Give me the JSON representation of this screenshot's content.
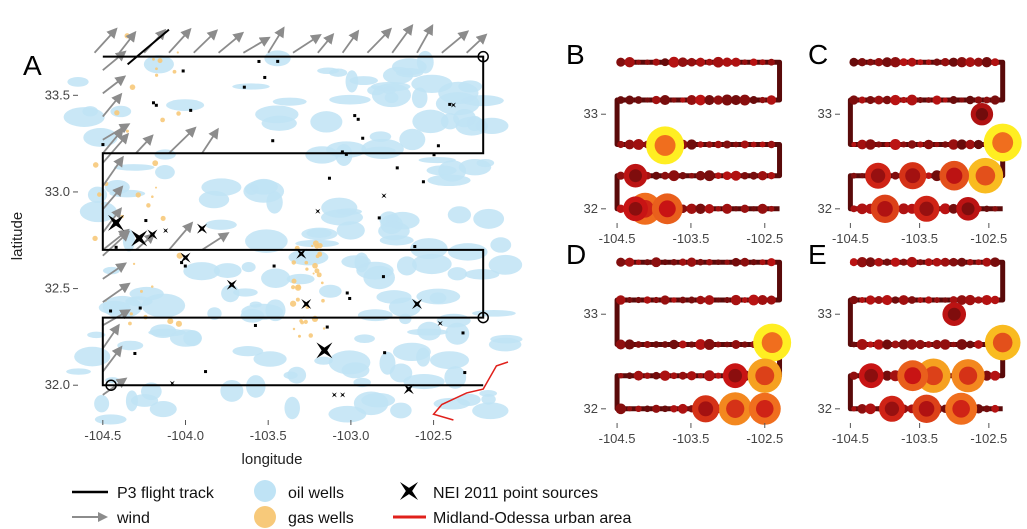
{
  "chart_data": [
    {
      "panel": "A",
      "type": "scatter",
      "xlabel": "longitude",
      "ylabel": "latitude",
      "xlim": [
        -104.65,
        -102.05
      ],
      "ylim": [
        31.82,
        33.9
      ],
      "x_ticks": [
        -104.5,
        -104.0,
        -103.5,
        -103.0,
        -102.5
      ],
      "x_tick_labels": [
        "-104.5",
        "-104.0",
        "-103.5",
        "-103.0",
        "-102.5"
      ],
      "y_ticks": [
        32.0,
        32.5,
        33.0,
        33.5
      ],
      "y_tick_labels": [
        "32.0",
        "32.5",
        "33.0",
        "33.5"
      ],
      "track_latitudes": [
        33.7,
        33.2,
        32.7,
        32.35,
        32.0
      ],
      "track_lon_range": [
        -104.5,
        -102.2
      ],
      "nei_point_sources": [
        {
          "lon": -104.42,
          "lat": 32.84,
          "size": "large"
        },
        {
          "lon": -104.28,
          "lat": 32.76,
          "size": "large"
        },
        {
          "lon": -104.2,
          "lat": 32.78,
          "size": "medium"
        },
        {
          "lon": -103.9,
          "lat": 32.81,
          "size": "medium"
        },
        {
          "lon": -104.12,
          "lat": 32.8,
          "size": "small"
        },
        {
          "lon": -104.0,
          "lat": 32.66,
          "size": "medium"
        },
        {
          "lon": -103.72,
          "lat": 32.52,
          "size": "medium"
        },
        {
          "lon": -103.3,
          "lat": 32.68,
          "size": "medium"
        },
        {
          "lon": -103.27,
          "lat": 32.42,
          "size": "medium"
        },
        {
          "lon": -103.16,
          "lat": 32.18,
          "size": "large"
        },
        {
          "lon": -103.1,
          "lat": 31.95,
          "size": "small"
        },
        {
          "lon": -103.05,
          "lat": 31.95,
          "size": "small"
        },
        {
          "lon": -102.6,
          "lat": 32.42,
          "size": "medium"
        },
        {
          "lon": -102.65,
          "lat": 31.98,
          "size": "medium"
        },
        {
          "lon": -102.46,
          "lat": 32.32,
          "size": "small"
        },
        {
          "lon": -102.38,
          "lat": 33.45,
          "size": "small"
        },
        {
          "lon": -102.8,
          "lat": 32.98,
          "size": "small"
        },
        {
          "lon": -103.2,
          "lat": 32.9,
          "size": "small"
        },
        {
          "lon": -104.08,
          "lat": 32.01,
          "size": "small"
        }
      ]
    },
    {
      "panel": "B",
      "type": "scatter",
      "xlim": [
        -104.65,
        -102.05
      ],
      "ylim": [
        31.85,
        33.7
      ],
      "x_ticks": [
        -104.5,
        -103.5,
        -102.5
      ],
      "x_tick_labels": [
        "-104.5",
        "-103.5",
        "-102.5"
      ],
      "y_ticks": [
        32,
        33
      ],
      "y_tick_labels": [
        "32",
        "33"
      ],
      "hotspots": [
        {
          "lon": -103.85,
          "lat": 32.67,
          "level": 1.0
        },
        {
          "lon": -104.12,
          "lat": 32.0,
          "level": 0.75
        },
        {
          "lon": -103.82,
          "lat": 32.0,
          "level": 0.7
        },
        {
          "lon": -104.25,
          "lat": 32.0,
          "level": 0.45
        },
        {
          "lon": -104.25,
          "lat": 32.35,
          "level": 0.4
        }
      ]
    },
    {
      "panel": "C",
      "type": "scatter",
      "xlim": [
        -104.65,
        -102.05
      ],
      "ylim": [
        31.85,
        33.7
      ],
      "x_ticks": [
        -104.5,
        -103.5,
        -102.5
      ],
      "x_tick_labels": [
        "-104.5",
        "-103.5",
        "-102.5"
      ],
      "y_ticks": [
        32,
        33
      ],
      "y_tick_labels": [
        "32",
        "33"
      ],
      "hotspots": [
        {
          "lon": -102.3,
          "lat": 32.7,
          "level": 1.0
        },
        {
          "lon": -102.55,
          "lat": 32.35,
          "level": 0.9
        },
        {
          "lon": -103.0,
          "lat": 32.35,
          "level": 0.65
        },
        {
          "lon": -103.6,
          "lat": 32.35,
          "level": 0.55
        },
        {
          "lon": -104.1,
          "lat": 32.35,
          "level": 0.5
        },
        {
          "lon": -104.0,
          "lat": 32.0,
          "level": 0.6
        },
        {
          "lon": -103.4,
          "lat": 32.0,
          "level": 0.5
        },
        {
          "lon": -102.8,
          "lat": 32.0,
          "level": 0.4
        },
        {
          "lon": -102.6,
          "lat": 33.0,
          "level": 0.35
        }
      ]
    },
    {
      "panel": "D",
      "type": "scatter",
      "xlim": [
        -104.65,
        -102.05
      ],
      "ylim": [
        31.85,
        33.7
      ],
      "x_ticks": [
        -104.5,
        -103.5,
        -102.5
      ],
      "x_tick_labels": [
        "-104.5",
        "-103.5",
        "-102.5"
      ],
      "y_ticks": [
        32,
        33
      ],
      "y_tick_labels": [
        "32",
        "33"
      ],
      "hotspots": [
        {
          "lon": -102.4,
          "lat": 32.7,
          "level": 1.0
        },
        {
          "lon": -102.5,
          "lat": 32.35,
          "level": 0.85
        },
        {
          "lon": -102.9,
          "lat": 32.0,
          "level": 0.8
        },
        {
          "lon": -102.5,
          "lat": 32.0,
          "level": 0.75
        },
        {
          "lon": -103.3,
          "lat": 32.0,
          "level": 0.55
        },
        {
          "lon": -102.9,
          "lat": 32.35,
          "level": 0.45
        }
      ]
    },
    {
      "panel": "E",
      "type": "scatter",
      "xlim": [
        -104.65,
        -102.05
      ],
      "ylim": [
        31.85,
        33.7
      ],
      "x_ticks": [
        -104.5,
        -103.5,
        -102.5
      ],
      "x_tick_labels": [
        "-104.5",
        "-103.5",
        "-102.5"
      ],
      "y_ticks": [
        32,
        33
      ],
      "y_tick_labels": [
        "32",
        "33"
      ],
      "hotspots": [
        {
          "lon": -102.3,
          "lat": 32.7,
          "level": 0.9
        },
        {
          "lon": -103.3,
          "lat": 32.35,
          "level": 0.85
        },
        {
          "lon": -102.8,
          "lat": 32.35,
          "level": 0.8
        },
        {
          "lon": -103.6,
          "lat": 32.35,
          "level": 0.7
        },
        {
          "lon": -102.9,
          "lat": 32.0,
          "level": 0.75
        },
        {
          "lon": -103.4,
          "lat": 32.0,
          "level": 0.6
        },
        {
          "lon": -103.9,
          "lat": 32.0,
          "level": 0.5
        },
        {
          "lon": -104.2,
          "lat": 32.35,
          "level": 0.45
        },
        {
          "lon": -103.0,
          "lat": 33.0,
          "level": 0.4
        }
      ]
    }
  ],
  "panel_labels": [
    "A",
    "B",
    "C",
    "D",
    "E"
  ],
  "legend": {
    "track": "P3 flight track",
    "wind": "wind",
    "oil_wells": "oil wells",
    "gas_wells": "gas wells",
    "nei": "NEI 2011 point sources",
    "urban": "Midland-Odessa urban area"
  },
  "colors": {
    "track": "#000000",
    "wind": "#8c8c8c",
    "oil_wells": "#bfe3f5",
    "gas_wells": "#f7c97a",
    "nei": "#000000",
    "urban": "#e0201b",
    "low": "#5a0a0a",
    "high": "#ffee22"
  }
}
